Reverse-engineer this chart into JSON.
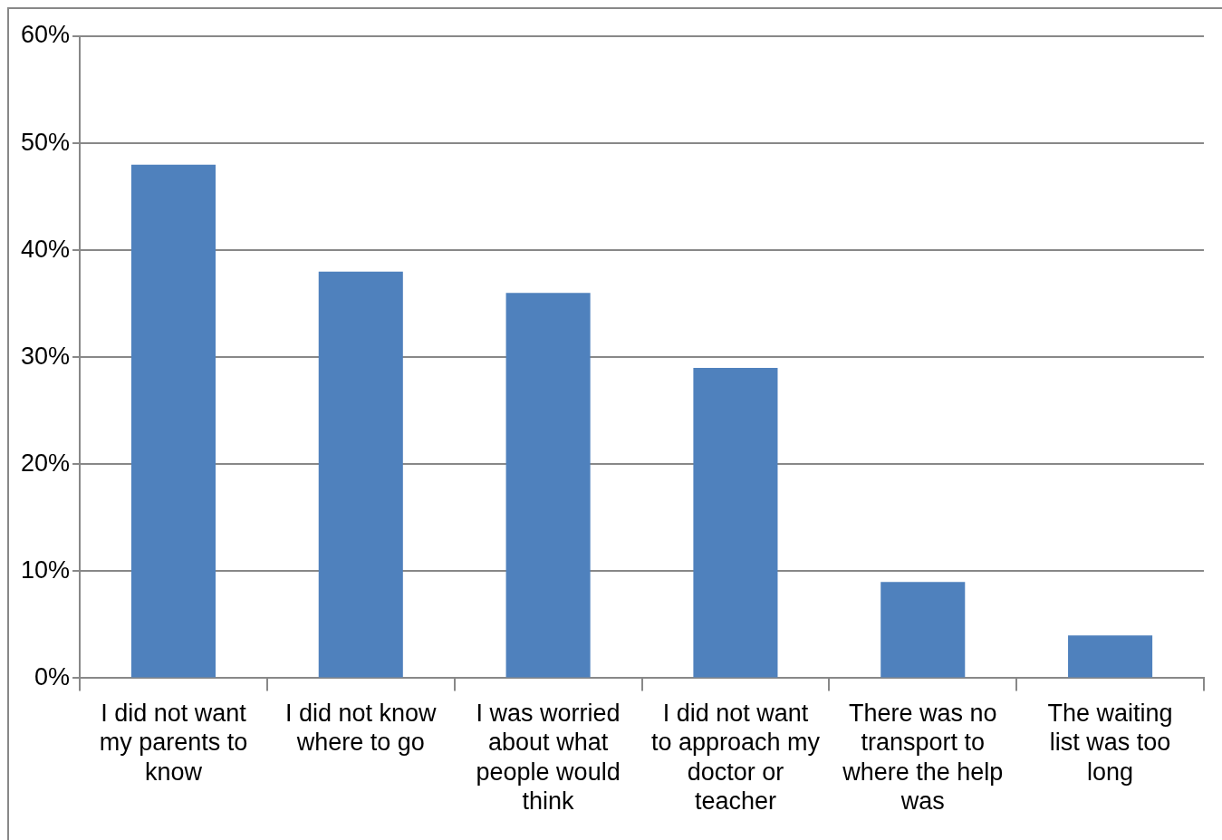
{
  "chart_data": {
    "type": "bar",
    "categories": [
      "I did not want my parents to know",
      "I did not know where to go",
      "I was worried about what people would think",
      "I did not want to approach my doctor or teacher",
      "There was no transport to where the help was",
      "The waiting list was too long"
    ],
    "values": [
      48,
      38,
      36,
      29,
      9,
      4
    ],
    "color": "#4f81bd",
    "ylim": [
      0,
      60
    ],
    "yticks": [
      {
        "value": 0,
        "label": "0%"
      },
      {
        "value": 10,
        "label": "10%"
      },
      {
        "value": 20,
        "label": "20%"
      },
      {
        "value": 30,
        "label": "30%"
      },
      {
        "value": 40,
        "label": "40%"
      },
      {
        "value": 50,
        "label": "50%"
      },
      {
        "value": 60,
        "label": "60%"
      }
    ],
    "grid": "y",
    "legend": false
  }
}
